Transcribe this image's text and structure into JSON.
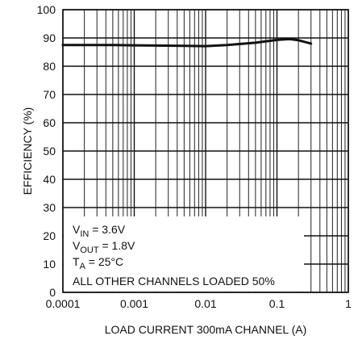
{
  "chart_data": {
    "type": "line",
    "xlabel": "LOAD CURRENT 300mA CHANNEL (A)",
    "ylabel": "EFFICIENCY (%)",
    "x_scale": "log",
    "xlim": [
      0.0001,
      1
    ],
    "ylim": [
      0,
      100
    ],
    "x_ticks": [
      {
        "v": 0.0001,
        "label": "0.0001"
      },
      {
        "v": 0.001,
        "label": "0.001"
      },
      {
        "v": 0.01,
        "label": "0.01"
      },
      {
        "v": 0.1,
        "label": "0.1"
      },
      {
        "v": 1,
        "label": "1"
      }
    ],
    "y_ticks": [
      {
        "v": 0,
        "label": "0"
      },
      {
        "v": 10,
        "label": "10"
      },
      {
        "v": 20,
        "label": "20"
      },
      {
        "v": 30,
        "label": "30"
      },
      {
        "v": 40,
        "label": "40"
      },
      {
        "v": 50,
        "label": "50"
      },
      {
        "v": 60,
        "label": "60"
      },
      {
        "v": 70,
        "label": "70"
      },
      {
        "v": 80,
        "label": "80"
      },
      {
        "v": 90,
        "label": "90"
      },
      {
        "v": 100,
        "label": "100"
      }
    ],
    "grid": true,
    "series": [
      {
        "color": "#111111",
        "x": [
          0.0001,
          0.0002,
          0.0005,
          0.001,
          0.002,
          0.005,
          0.01,
          0.02,
          0.05,
          0.1,
          0.15,
          0.2,
          0.3
        ],
        "y": [
          87.5,
          87.5,
          87.5,
          87.4,
          87.3,
          87.2,
          87.1,
          87.5,
          88.3,
          89.3,
          89.6,
          89.2,
          88.0
        ]
      }
    ],
    "annotations": [
      {
        "main": "V",
        "sub": "IN",
        "rest": " = 3.6V"
      },
      {
        "main": "V",
        "sub": "OUT",
        "rest": " = 1.8V"
      },
      {
        "main": "T",
        "sub": "A",
        "rest": " = 25°C"
      },
      {
        "main": "ALL OTHER CHANNELS LOADED 50%",
        "sub": "",
        "rest": ""
      }
    ]
  }
}
